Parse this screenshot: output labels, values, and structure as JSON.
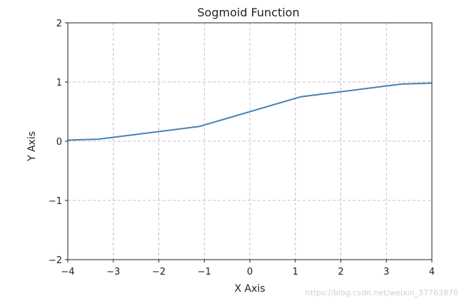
{
  "chart_data": {
    "type": "line",
    "title": "Sogmoid Function",
    "xlabel": "X Axis",
    "ylabel": "Y Axis",
    "xlim": [
      -4,
      4
    ],
    "ylim": [
      -2,
      2
    ],
    "xticks": [
      -4,
      -3,
      -2,
      -1,
      0,
      1,
      2,
      3,
      4
    ],
    "yticks": [
      -2,
      -1,
      0,
      1,
      2
    ],
    "xtick_labels": [
      "−4",
      "−3",
      "−2",
      "−1",
      "0",
      "1",
      "2",
      "3",
      "4"
    ],
    "ytick_labels": [
      "−2",
      "−1",
      "0",
      "1",
      "2"
    ],
    "grid": true,
    "series": [
      {
        "color": "#4682b4",
        "x": [
          -4,
          -3.33,
          -1.11,
          1.11,
          3.33,
          4
        ],
        "y": [
          0.018,
          0.035,
          0.25,
          0.75,
          0.965,
          0.982
        ]
      }
    ]
  },
  "watermark": "https://blog.csdn.net/weixin_37763870"
}
